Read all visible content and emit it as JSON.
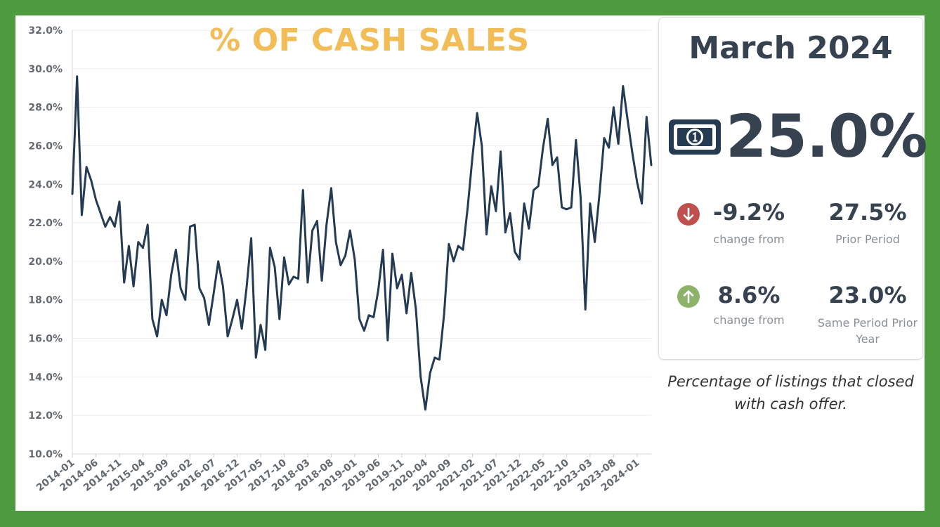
{
  "chart_data": {
    "type": "line",
    "title": "% OF CASH SALES",
    "xlabel": "",
    "ylabel": "",
    "ylim": [
      10.0,
      32.0
    ],
    "y_ticks": [
      "32.0%",
      "30.0%",
      "28.0%",
      "26.0%",
      "24.0%",
      "22.0%",
      "20.0%",
      "18.0%",
      "16.0%",
      "14.0%",
      "12.0%",
      "10.0%"
    ],
    "x_ticks": [
      "2014-01",
      "2014-06",
      "2014-11",
      "2015-04",
      "2015-09",
      "2016-02",
      "2016-07",
      "2016-12",
      "2017-05",
      "2017-10",
      "2018-03",
      "2018-08",
      "2019-01",
      "2019-06",
      "2019-11",
      "2020-04",
      "2020-09",
      "2021-02",
      "2021-07",
      "2021-12",
      "2022-05",
      "2022-10",
      "2023-03",
      "2023-08",
      "2024-01"
    ],
    "grid": true,
    "series": [
      {
        "color": "#243b53",
        "x_start": "2014-01",
        "values": [
          23.5,
          29.6,
          22.4,
          24.9,
          24.2,
          23.2,
          22.5,
          21.8,
          22.3,
          21.8,
          23.1,
          18.9,
          20.8,
          18.7,
          21.0,
          20.7,
          21.9,
          17.0,
          16.1,
          18.0,
          17.2,
          19.3,
          20.6,
          18.6,
          18.0,
          21.8,
          21.9,
          18.6,
          18.1,
          16.7,
          18.3,
          20.0,
          18.7,
          16.1,
          17.0,
          18.0,
          16.5,
          18.6,
          21.2,
          15.0,
          16.7,
          15.4,
          20.7,
          19.7,
          17.0,
          20.2,
          18.8,
          19.2,
          19.1,
          23.7,
          18.9,
          21.6,
          22.1,
          19.0,
          21.9,
          23.8,
          21.0,
          19.8,
          20.3,
          21.6,
          20.1,
          17.0,
          16.4,
          17.2,
          17.1,
          18.5,
          20.6,
          15.9,
          20.4,
          18.6,
          19.3,
          17.3,
          19.4,
          17.5,
          14.0,
          12.3,
          14.2,
          15.0,
          14.9,
          17.3,
          20.9,
          20.0,
          20.8,
          20.6,
          22.8,
          25.4,
          27.7,
          26.0,
          21.4,
          23.9,
          22.6,
          25.7,
          21.5,
          22.5,
          20.5,
          20.1,
          23.0,
          21.7,
          23.7,
          23.9,
          25.9,
          27.4,
          25.0,
          25.4,
          22.8,
          22.7,
          22.8,
          26.3,
          23.3,
          17.5,
          23.0,
          21.0,
          23.5,
          26.4,
          25.9,
          28.0,
          26.1,
          29.1,
          27.3,
          25.6,
          24.1,
          23.0,
          27.5,
          25.0
        ]
      }
    ]
  },
  "card": {
    "period": "March 2024",
    "main_value": "25.0%",
    "stats": [
      {
        "direction": "down",
        "change": "-9.2%",
        "change_label": "change from",
        "compare_value": "27.5%",
        "compare_label": "Prior Period"
      },
      {
        "direction": "up",
        "change": "8.6%",
        "change_label": "change from",
        "compare_value": "23.0%",
        "compare_label": "Same Period Prior Year"
      }
    ]
  },
  "caption": "Percentage of listings that closed with cash offer.",
  "colors": {
    "background": "#4e9a3f",
    "title": "#f2bd57",
    "line": "#243b53",
    "down": "#c0504d",
    "up": "#8db36b",
    "money_icon": "#243b53"
  },
  "icons": {
    "money": "money-bill-icon",
    "down": "arrow-down-circle-icon",
    "up": "arrow-up-circle-icon"
  }
}
